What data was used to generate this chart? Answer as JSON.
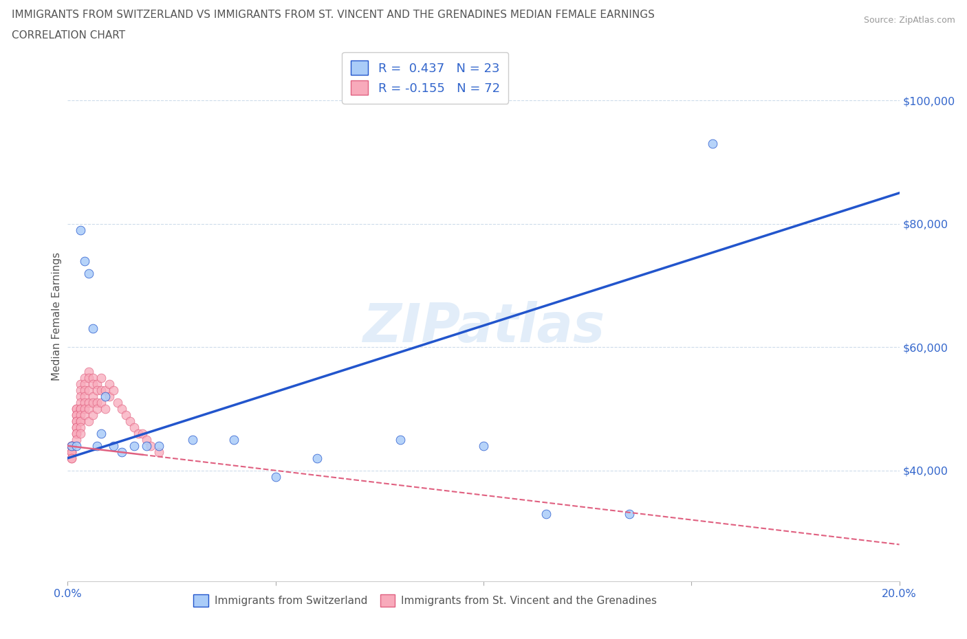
{
  "title_line1": "IMMIGRANTS FROM SWITZERLAND VS IMMIGRANTS FROM ST. VINCENT AND THE GRENADINES MEDIAN FEMALE EARNINGS",
  "title_line2": "CORRELATION CHART",
  "source_text": "Source: ZipAtlas.com",
  "ylabel": "Median Female Earnings",
  "watermark": "ZIPatlas",
  "r_switzerland": 0.437,
  "n_switzerland": 23,
  "r_stv": -0.155,
  "n_stv": 72,
  "color_switzerland": "#aaccf8",
  "color_stv": "#f8aabb",
  "line_color_switzerland": "#2255cc",
  "line_color_stv": "#e06080",
  "background_color": "#ffffff",
  "grid_color": "#c8d8e8",
  "title_color": "#555555",
  "axis_label_color": "#3366cc",
  "legend_r_color": "#3366cc",
  "xlim": [
    0.0,
    0.2
  ],
  "ylim": [
    22000,
    108000
  ],
  "yticks": [
    40000,
    60000,
    80000,
    100000
  ],
  "ytick_labels": [
    "$40,000",
    "$60,000",
    "$80,000",
    "$100,000"
  ],
  "xticks": [
    0.0,
    0.05,
    0.1,
    0.15,
    0.2
  ],
  "xtick_labels": [
    "0.0%",
    "",
    "",
    "",
    "20.0%"
  ],
  "swiss_line_x0": 0.0,
  "swiss_line_y0": 42000,
  "swiss_line_x1": 0.2,
  "swiss_line_y1": 85000,
  "stv_line_x0": 0.0,
  "stv_line_y0": 44000,
  "stv_line_x1": 0.2,
  "stv_line_y1": 28000,
  "swiss_x": [
    0.001,
    0.002,
    0.003,
    0.004,
    0.005,
    0.006,
    0.007,
    0.008,
    0.009,
    0.011,
    0.013,
    0.016,
    0.019,
    0.022,
    0.03,
    0.04,
    0.05,
    0.06,
    0.08,
    0.1,
    0.115,
    0.135,
    0.155
  ],
  "swiss_y": [
    44000,
    44000,
    79000,
    74000,
    72000,
    63000,
    44000,
    46000,
    52000,
    44000,
    43000,
    44000,
    44000,
    44000,
    45000,
    45000,
    39000,
    42000,
    45000,
    44000,
    33000,
    33000,
    93000
  ],
  "stv_x": [
    0.001,
    0.001,
    0.001,
    0.001,
    0.001,
    0.001,
    0.001,
    0.001,
    0.001,
    0.001,
    0.002,
    0.002,
    0.002,
    0.002,
    0.002,
    0.002,
    0.002,
    0.002,
    0.002,
    0.002,
    0.002,
    0.003,
    0.003,
    0.003,
    0.003,
    0.003,
    0.003,
    0.003,
    0.003,
    0.003,
    0.003,
    0.003,
    0.004,
    0.004,
    0.004,
    0.004,
    0.004,
    0.004,
    0.004,
    0.005,
    0.005,
    0.005,
    0.005,
    0.005,
    0.005,
    0.006,
    0.006,
    0.006,
    0.006,
    0.006,
    0.007,
    0.007,
    0.007,
    0.007,
    0.008,
    0.008,
    0.008,
    0.009,
    0.009,
    0.01,
    0.01,
    0.011,
    0.012,
    0.013,
    0.014,
    0.015,
    0.016,
    0.017,
    0.018,
    0.019,
    0.02,
    0.022
  ],
  "stv_y": [
    44000,
    44000,
    44000,
    44000,
    44000,
    43000,
    43000,
    43000,
    42000,
    42000,
    50000,
    50000,
    49000,
    49000,
    48000,
    48000,
    47000,
    47000,
    46000,
    46000,
    45000,
    54000,
    53000,
    52000,
    51000,
    50000,
    50000,
    49000,
    48000,
    48000,
    47000,
    46000,
    55000,
    54000,
    53000,
    52000,
    51000,
    50000,
    49000,
    56000,
    55000,
    53000,
    51000,
    50000,
    48000,
    55000,
    54000,
    52000,
    51000,
    49000,
    54000,
    53000,
    51000,
    50000,
    55000,
    53000,
    51000,
    53000,
    50000,
    54000,
    52000,
    53000,
    51000,
    50000,
    49000,
    48000,
    47000,
    46000,
    46000,
    45000,
    44000,
    43000
  ]
}
